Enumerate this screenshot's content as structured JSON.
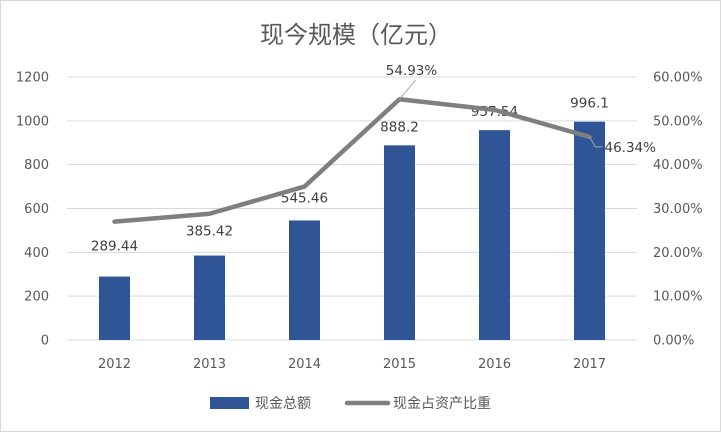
{
  "chart_data": {
    "type": "bar",
    "title": "现今规模（亿元）",
    "categories": [
      "2012",
      "2013",
      "2014",
      "2015",
      "2016",
      "2017"
    ],
    "series": [
      {
        "name": "现金总额",
        "type": "bar",
        "axis": "left",
        "color": "#2f5597",
        "values": [
          289.44,
          385.42,
          545.46,
          888.2,
          957.54,
          996.1
        ],
        "data_labels": [
          "289.44",
          "385.42",
          "545.46",
          "888.2",
          "957.54",
          "996.1"
        ]
      },
      {
        "name": "现金占资产比重",
        "type": "line",
        "axis": "right",
        "color": "#7f7f7f",
        "values": [
          0.27,
          0.288,
          0.35,
          0.5493,
          0.525,
          0.4634
        ],
        "data_labels": [
          "",
          "",
          "",
          "54.93%",
          "",
          "46.34%"
        ]
      }
    ],
    "y_left": {
      "lim": [
        0,
        1200
      ],
      "ticks": [
        0,
        200,
        400,
        600,
        800,
        1000,
        1200
      ],
      "tick_labels": [
        "0",
        "200",
        "400",
        "600",
        "800",
        "1000",
        "1200"
      ]
    },
    "y_right": {
      "lim": [
        0,
        0.6
      ],
      "ticks": [
        0,
        0.1,
        0.2,
        0.3,
        0.4,
        0.5,
        0.6
      ],
      "tick_labels": [
        "0.00%",
        "10.00%",
        "20.00%",
        "30.00%",
        "40.00%",
        "50.00%",
        "60.00%"
      ]
    },
    "grid": true,
    "legend": "bottom"
  }
}
